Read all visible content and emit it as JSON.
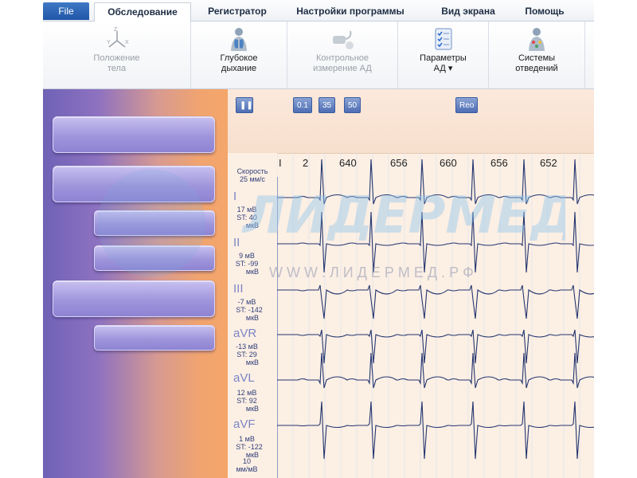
{
  "tabs": {
    "file": "File",
    "exam": "Обследование",
    "registrar": "Регистратор",
    "settings": "Настройки программы",
    "view": "Вид экрана",
    "help": "Помощь"
  },
  "ribbon": {
    "body_position": "Положение\nтела",
    "deep_breath": "Глубокое\nдыхание",
    "bp_measure": "Контрольное\nизмерение АД",
    "bp_params": "Параметры\nАД ▾",
    "lead_systems": "Системы\nотведений"
  },
  "controls": {
    "pause": "❚❚",
    "f01": "0.1",
    "f35": "35",
    "f50": "50",
    "reo": "Reo"
  },
  "ecg": {
    "speed": "Скорость\n25 мм/с",
    "rr_intervals": [
      "I",
      "2",
      "640",
      "656",
      "660",
      "656",
      "652"
    ],
    "leads": [
      {
        "name": "I",
        "amp": "17 мВ",
        "st": "ST: 40",
        "unit": "мкВ"
      },
      {
        "name": "II",
        "amp": "9 мВ",
        "st": "ST: -99",
        "unit": "мкВ"
      },
      {
        "name": "III",
        "amp": "-7 мВ",
        "st": "ST: -142",
        "unit": "мкВ"
      },
      {
        "name": "aVR",
        "amp": "-13 мВ",
        "st": "ST: 29",
        "unit": "мкВ"
      },
      {
        "name": "aVL",
        "amp": "12 мВ",
        "st": "ST: 92",
        "unit": "мкВ"
      },
      {
        "name": "aVF",
        "amp": "1 мВ",
        "st": "ST: -122",
        "unit": "мкВ"
      }
    ],
    "scale": "10\nмм/мВ"
  },
  "watermark": {
    "logo": "ЛИДЕРМЕД",
    "url": "W W W . Л И Д Е Р М Е Д . Р Ф"
  },
  "colors": {
    "trace": "#23356f",
    "grid": "#d7e1ef",
    "monitor_bg": "#fcefe4",
    "panel_button": "#a49ae0"
  }
}
